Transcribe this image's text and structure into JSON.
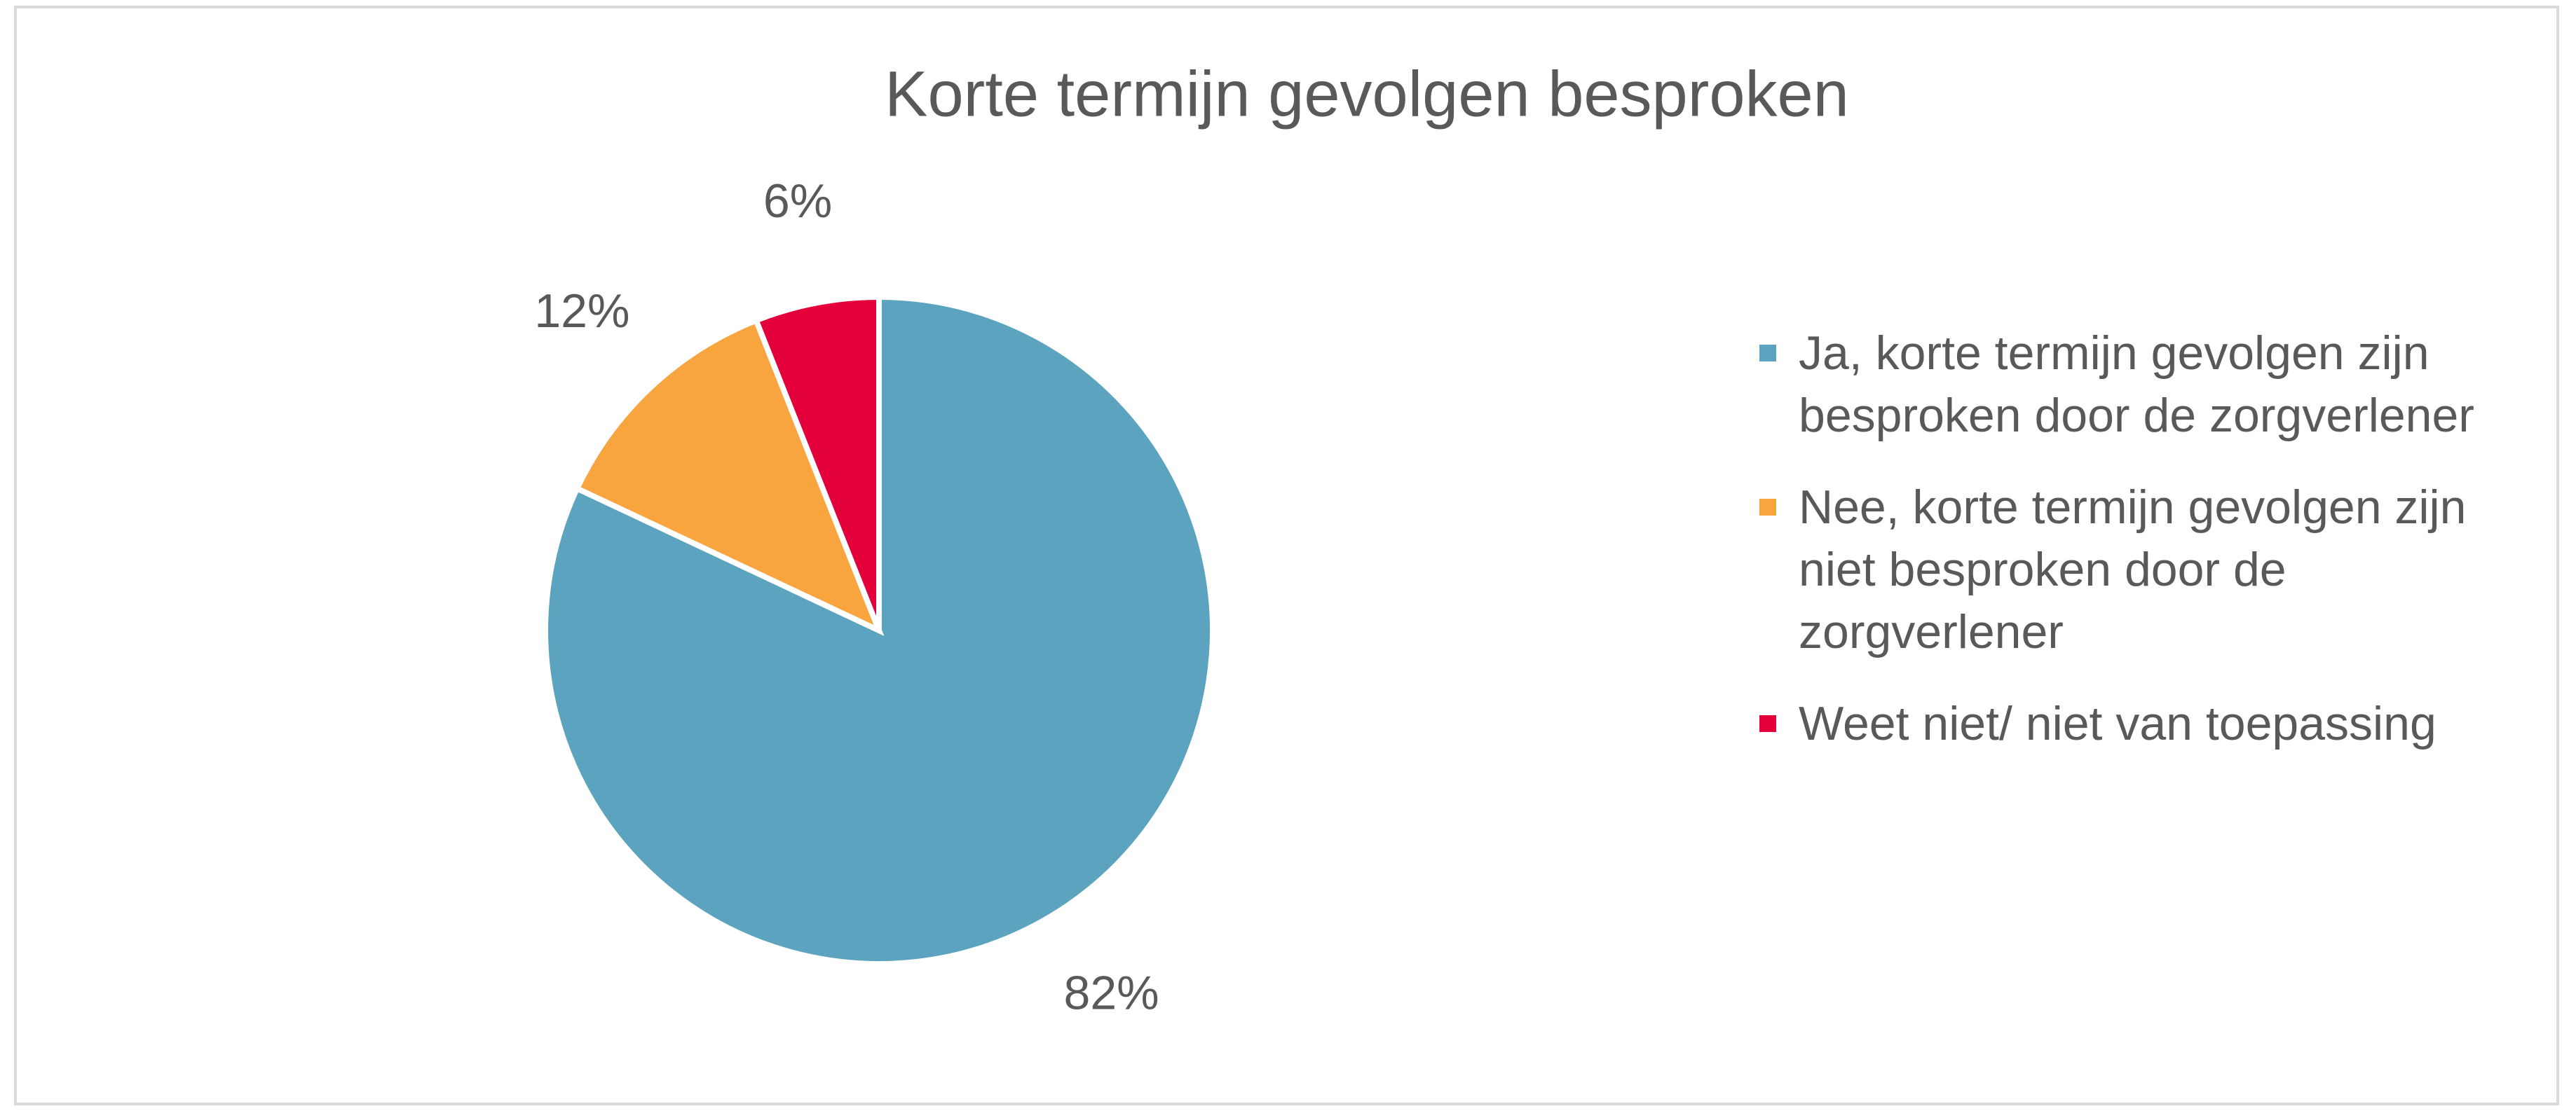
{
  "chart_data": {
    "type": "pie",
    "title": "Korte termijn gevolgen besproken",
    "categories": [
      "Ja, korte termijn gevolgen zijn besproken door de zorgverlener",
      "Nee, korte termijn gevolgen zijn niet besproken door de zorgverlener",
      "Weet niet/ niet van toepassing"
    ],
    "values": [
      82,
      12,
      6
    ],
    "value_labels": [
      "82%",
      "12%",
      "6%"
    ],
    "colors": [
      "#5ba3be",
      "#f9a53f",
      "#e4003a"
    ],
    "legend": "right"
  }
}
